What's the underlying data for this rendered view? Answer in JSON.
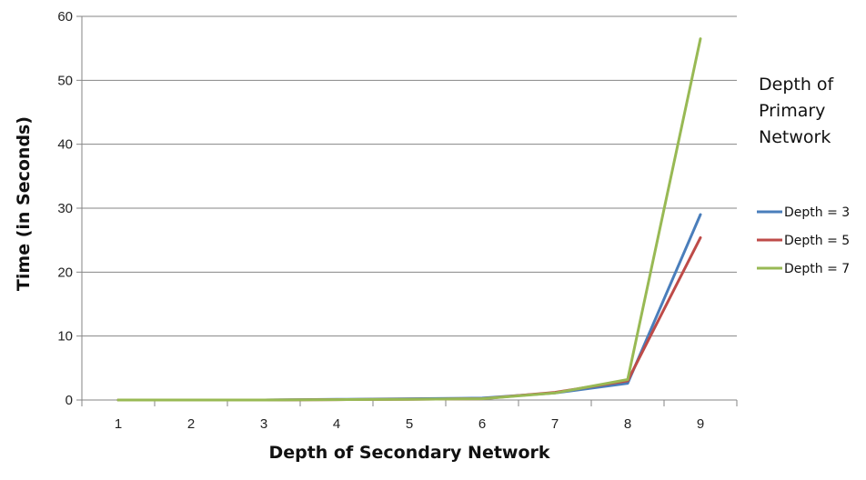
{
  "chart_data": {
    "type": "line",
    "xlabel": "Depth of Secondary Network",
    "ylabel": "Time (in Seconds)",
    "x": [
      1,
      2,
      3,
      4,
      5,
      6,
      7,
      8,
      9
    ],
    "ylim": [
      0,
      60
    ],
    "yticks": [
      0,
      10,
      20,
      30,
      40,
      50,
      60
    ],
    "grid": true,
    "legend": {
      "title_lines": [
        "Depth of",
        "Primary",
        "Network"
      ],
      "placement": "right"
    },
    "series": [
      {
        "name": "Depth = 3",
        "color": "#4a7ebb",
        "values": [
          0,
          0,
          0,
          0.1,
          0.2,
          0.3,
          1.1,
          2.6,
          29
        ]
      },
      {
        "name": "Depth = 5",
        "color": "#be4b48",
        "values": [
          0,
          0,
          0,
          0.05,
          0.1,
          0.2,
          1.2,
          3.0,
          25.4
        ]
      },
      {
        "name": "Depth = 7",
        "color": "#98b954",
        "values": [
          0,
          0,
          0,
          0.05,
          0.1,
          0.2,
          1.1,
          3.2,
          56.5
        ]
      }
    ]
  }
}
